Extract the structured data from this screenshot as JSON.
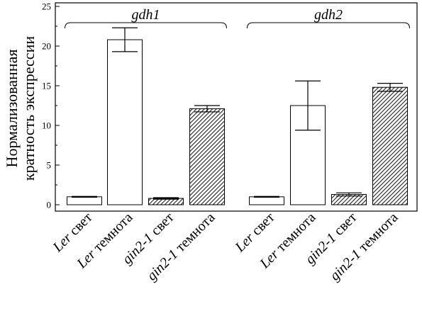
{
  "chart_data": {
    "type": "bar",
    "ylabel_lines": [
      "Нормализованная",
      "кратность экспрессии"
    ],
    "ylim": [
      0,
      25
    ],
    "yticks": [
      0,
      5,
      10,
      15,
      20,
      25
    ],
    "grid": false,
    "groups": [
      {
        "label": "gdh1",
        "bars": [
          {
            "category_italic": "Ler",
            "category_rest": " свет",
            "value": 1.0,
            "error": 0.05,
            "fill": "open"
          },
          {
            "category_italic": "Ler",
            "category_rest": " темнота",
            "value": 20.8,
            "error": 1.5,
            "fill": "open"
          },
          {
            "category_italic": "gin2-1",
            "category_rest": " свет",
            "value": 0.8,
            "error": 0.1,
            "fill": "hatched"
          },
          {
            "category_italic": "gin2-1",
            "category_rest": " темнота",
            "value": 12.1,
            "error": 0.4,
            "fill": "hatched"
          }
        ]
      },
      {
        "label": "gdh2",
        "bars": [
          {
            "category_italic": "Ler",
            "category_rest": " свет",
            "value": 1.0,
            "error": 0.05,
            "fill": "open"
          },
          {
            "category_italic": "Ler",
            "category_rest": " темнота",
            "value": 12.5,
            "error": 3.1,
            "fill": "open"
          },
          {
            "category_italic": "gin2-1",
            "category_rest": " свет",
            "value": 1.3,
            "error": 0.2,
            "fill": "hatched"
          },
          {
            "category_italic": "gin2-1",
            "category_rest": " темнота",
            "value": 14.8,
            "error": 0.5,
            "fill": "hatched"
          }
        ]
      }
    ]
  }
}
